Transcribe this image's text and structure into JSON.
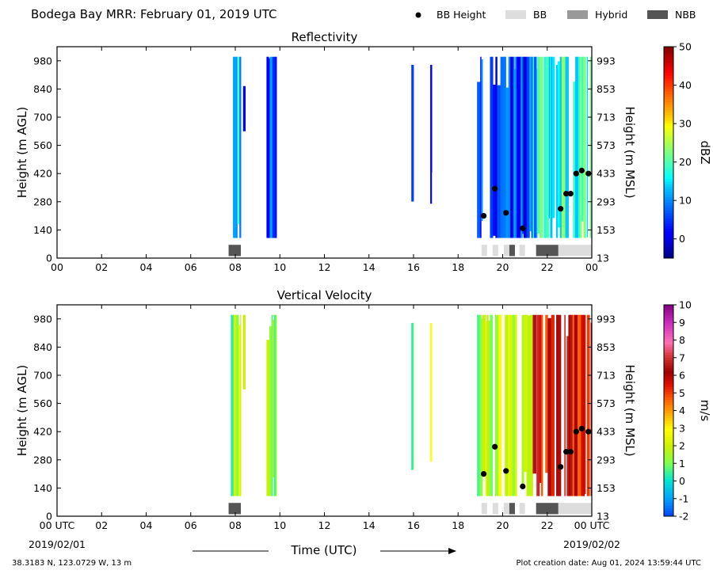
{
  "figure": {
    "title": "Bodega Bay MRR:  February 01, 2019 UTC",
    "location": "38.3183 N, 123.0729 W, 13 m",
    "creation_date": "Plot creation date: Aug 01, 2024 13:59:44 UTC",
    "xlabel": "Time (UTC)",
    "start_date": "2019/02/01",
    "end_date": "2019/02/02",
    "x_ticks": [
      "00 UTC",
      "02",
      "04",
      "06",
      "08",
      "10",
      "12",
      "14",
      "16",
      "18",
      "20",
      "22",
      "00 UTC"
    ],
    "x_ticks_top": [
      "00",
      "02",
      "04",
      "06",
      "08",
      "10",
      "12",
      "14",
      "16",
      "18",
      "20",
      "22",
      "00"
    ]
  },
  "legend": [
    {
      "label": "BB Height",
      "kind": "dot",
      "color": "#000000"
    },
    {
      "label": "BB",
      "kind": "box",
      "color": "#dddddd"
    },
    {
      "label": "Hybrid",
      "kind": "box",
      "color": "#999999"
    },
    {
      "label": "NBB",
      "kind": "box",
      "color": "#555555"
    }
  ],
  "chart_data": [
    {
      "type": "heatmap",
      "title": "Reflectivity",
      "ylabel": "Height (m AGL)",
      "ylabel_right": "Height (m MSL)",
      "y_ticks": [
        0,
        140,
        280,
        420,
        560,
        700,
        840,
        980
      ],
      "y_ticks_right": [
        13,
        153,
        293,
        433,
        573,
        713,
        853,
        993
      ],
      "xlim": [
        0,
        24
      ],
      "ylim": [
        0,
        1050
      ],
      "colorbar": {
        "label": "dBZ",
        "ticks": [
          0,
          10,
          20,
          30,
          40,
          50
        ],
        "range": [
          -5,
          50
        ],
        "colormap": "jet"
      },
      "echo_blocks": [
        {
          "start": 7.8,
          "end": 8.25,
          "value": 10
        },
        {
          "start": 8.35,
          "end": 8.45,
          "value": 3,
          "ymin": 630
        },
        {
          "start": 9.4,
          "end": 9.85,
          "value": 5
        },
        {
          "start": 15.9,
          "end": 16.0,
          "value": 2,
          "ymin": 230,
          "ymax": 960
        },
        {
          "start": 16.75,
          "end": 16.82,
          "value": 2,
          "ymin": 270,
          "ymax": 960
        },
        {
          "start": 18.85,
          "end": 21.35,
          "value": 6
        },
        {
          "start": 21.35,
          "end": 21.55,
          "value": 12
        },
        {
          "start": 21.55,
          "end": 24.0,
          "value": 19
        }
      ]
    },
    {
      "type": "heatmap",
      "title": "Vertical Velocity",
      "ylabel": "Height (m AGL)",
      "ylabel_right": "Height (m MSL)",
      "y_ticks": [
        0,
        140,
        280,
        420,
        560,
        700,
        840,
        980
      ],
      "y_ticks_right": [
        13,
        153,
        293,
        433,
        573,
        713,
        853,
        993
      ],
      "xlim": [
        0,
        24
      ],
      "ylim": [
        0,
        1050
      ],
      "colorbar": {
        "label": "m/s",
        "ticks": [
          -2,
          -1,
          0,
          1,
          2,
          3,
          4,
          5,
          6,
          7,
          8,
          9,
          10
        ],
        "range": [
          -2,
          10
        ],
        "colormap": "velocity"
      },
      "echo_blocks": [
        {
          "start": 7.8,
          "end": 8.25,
          "value": 1.6
        },
        {
          "start": 8.35,
          "end": 8.45,
          "value": 1.8,
          "ymin": 630
        },
        {
          "start": 9.4,
          "end": 9.85,
          "value": 1.5
        },
        {
          "start": 15.9,
          "end": 16.0,
          "value": 1.3,
          "ymin": 230,
          "ymax": 960
        },
        {
          "start": 16.75,
          "end": 16.82,
          "value": 2.0,
          "ymin": 270,
          "ymax": 960
        },
        {
          "start": 18.85,
          "end": 21.35,
          "value": 2.0
        },
        {
          "start": 21.35,
          "end": 21.55,
          "value": 6.5
        },
        {
          "start": 21.55,
          "end": 24.0,
          "value": 5.5
        }
      ]
    }
  ],
  "bright_band": {
    "heights": [
      {
        "x": 19.15,
        "y": 210
      },
      {
        "x": 19.65,
        "y": 345
      },
      {
        "x": 20.15,
        "y": 225
      },
      {
        "x": 20.9,
        "y": 148
      },
      {
        "x": 22.6,
        "y": 245
      },
      {
        "x": 22.85,
        "y": 320
      },
      {
        "x": 23.05,
        "y": 320
      },
      {
        "x": 23.3,
        "y": 420
      },
      {
        "x": 23.55,
        "y": 435
      },
      {
        "x": 23.85,
        "y": 420
      }
    ],
    "type_segments": [
      {
        "start": 7.7,
        "end": 8.25,
        "type": "NBB"
      },
      {
        "start": 19.05,
        "end": 19.3,
        "type": "BB"
      },
      {
        "start": 19.55,
        "end": 19.8,
        "type": "BB"
      },
      {
        "start": 20.05,
        "end": 20.3,
        "type": "BB"
      },
      {
        "start": 20.3,
        "end": 20.55,
        "type": "NBB"
      },
      {
        "start": 20.75,
        "end": 21.0,
        "type": "BB"
      },
      {
        "start": 21.5,
        "end": 22.5,
        "type": "NBB"
      },
      {
        "start": 22.5,
        "end": 24.0,
        "type": "BB"
      }
    ]
  }
}
